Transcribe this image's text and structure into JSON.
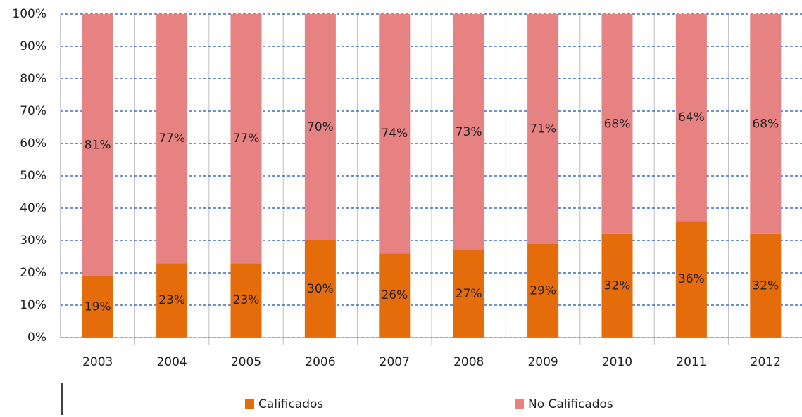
{
  "chart_data": {
    "type": "stacked_bar",
    "categories": [
      "2003",
      "2004",
      "2005",
      "2006",
      "2007",
      "2008",
      "2009",
      "2010",
      "2011",
      "2012"
    ],
    "series": [
      {
        "name": "Calificados",
        "color": "#e46c0a",
        "values": [
          19,
          23,
          23,
          30,
          26,
          27,
          29,
          32,
          36,
          32
        ],
        "value_labels": [
          "19%",
          "23%",
          "23%",
          "30%",
          "26%",
          "27%",
          "29%",
          "32%",
          "36%",
          "32%"
        ]
      },
      {
        "name": "No Calificados",
        "color": "#e68282",
        "values": [
          81,
          77,
          77,
          70,
          74,
          73,
          71,
          68,
          64,
          68
        ],
        "value_labels": [
          "81%",
          "77%",
          "77%",
          "70%",
          "74%",
          "73%",
          "71%",
          "68%",
          "64%",
          "68%"
        ]
      }
    ],
    "ylim": [
      0,
      100
    ],
    "yticks": [
      {
        "value": 0,
        "label": "0%"
      },
      {
        "value": 10,
        "label": "10%"
      },
      {
        "value": 20,
        "label": "20%"
      },
      {
        "value": 30,
        "label": "30%"
      },
      {
        "value": 40,
        "label": "40%"
      },
      {
        "value": 50,
        "label": "50%"
      },
      {
        "value": 60,
        "label": "60%"
      },
      {
        "value": 70,
        "label": "70%"
      },
      {
        "value": 80,
        "label": "80%"
      },
      {
        "value": 90,
        "label": "90%"
      },
      {
        "value": 100,
        "label": "100%"
      }
    ],
    "grid": true,
    "legend": "bottom"
  }
}
